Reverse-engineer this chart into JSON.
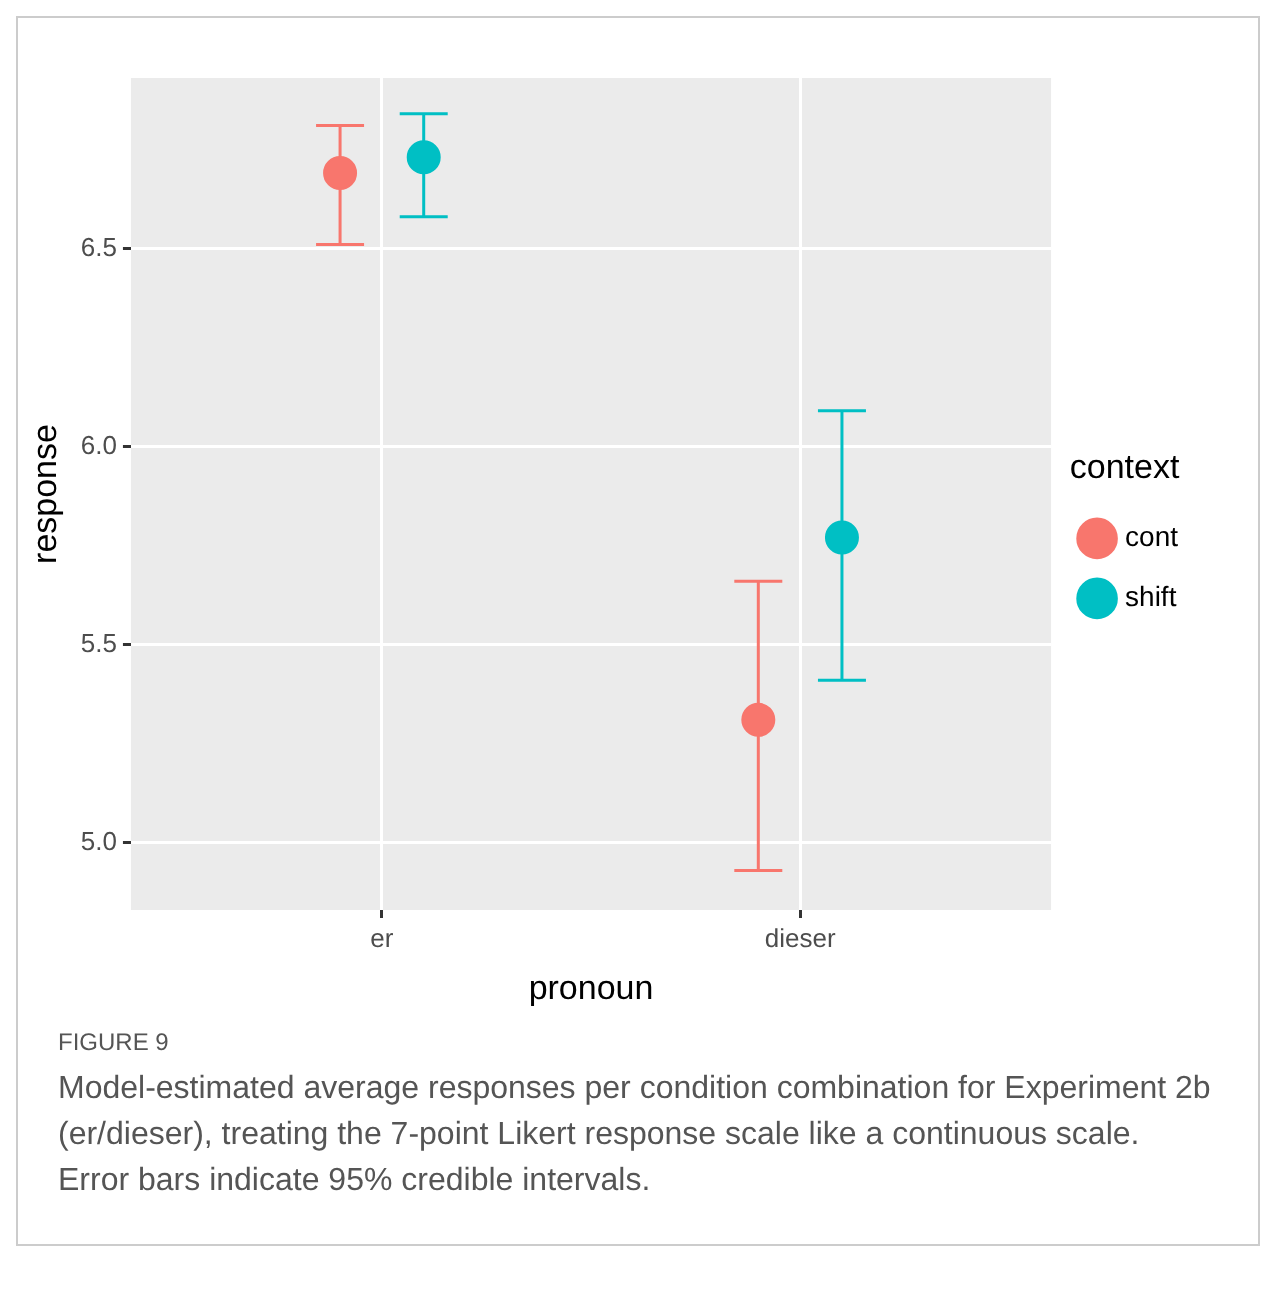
{
  "chart_data": {
    "type": "scatter",
    "xlabel": "pronoun",
    "ylabel": "response",
    "legend_title": "context",
    "categories": [
      "er",
      "dieser"
    ],
    "series": [
      {
        "name": "cont",
        "color": "#f8766d",
        "values": [
          6.69,
          5.31
        ],
        "errors": [
          [
            6.51,
            6.81
          ],
          [
            4.93,
            5.66
          ]
        ]
      },
      {
        "name": "shift",
        "color": "#00bfc4",
        "values": [
          6.73,
          5.77
        ],
        "errors": [
          [
            6.58,
            6.84
          ],
          [
            5.41,
            6.09
          ]
        ]
      }
    ],
    "ylim": [
      4.83,
      6.93
    ],
    "yticks": [
      {
        "value": 5,
        "label": "5.0"
      },
      {
        "value": 5.5,
        "label": "5.5"
      },
      {
        "value": 6,
        "label": "6.0"
      },
      {
        "value": 6.5,
        "label": "6.5"
      }
    ],
    "grid": true,
    "legend": "right",
    "marker": "circle",
    "annotations": [
      "FIGURE 9",
      "Model-estimated average responses per condition combination for Experiment 2b (er/dieser), treating the 7-point Likert response scale like a continuous scale. Error bars indicate 95% credible intervals."
    ]
  }
}
